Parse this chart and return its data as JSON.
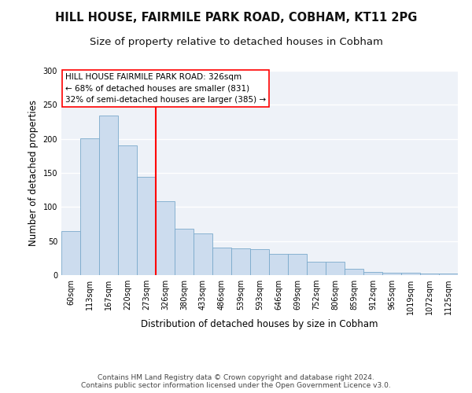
{
  "title1": "HILL HOUSE, FAIRMILE PARK ROAD, COBHAM, KT11 2PG",
  "title2": "Size of property relative to detached houses in Cobham",
  "xlabel": "Distribution of detached houses by size in Cobham",
  "ylabel": "Number of detached properties",
  "categories": [
    "60sqm",
    "113sqm",
    "167sqm",
    "220sqm",
    "273sqm",
    "326sqm",
    "380sqm",
    "433sqm",
    "486sqm",
    "539sqm",
    "593sqm",
    "646sqm",
    "699sqm",
    "752sqm",
    "806sqm",
    "859sqm",
    "912sqm",
    "965sqm",
    "1019sqm",
    "1072sqm",
    "1125sqm"
  ],
  "values": [
    65,
    201,
    234,
    190,
    144,
    108,
    68,
    61,
    40,
    39,
    38,
    31,
    31,
    20,
    20,
    9,
    5,
    4,
    4,
    2,
    2
  ],
  "bar_color": "#ccdcee",
  "bar_edge_color": "#7aaacb",
  "vline_color": "red",
  "vline_index": 5,
  "annotation_text": "HILL HOUSE FAIRMILE PARK ROAD: 326sqm\n← 68% of detached houses are smaller (831)\n32% of semi-detached houses are larger (385) →",
  "annotation_box_color": "white",
  "annotation_box_edge": "red",
  "ylim": [
    0,
    300
  ],
  "yticks": [
    0,
    50,
    100,
    150,
    200,
    250,
    300
  ],
  "footer_text": "Contains HM Land Registry data © Crown copyright and database right 2024.\nContains public sector information licensed under the Open Government Licence v3.0.",
  "background_color": "#eef2f8",
  "grid_color": "#ffffff",
  "title1_fontsize": 10.5,
  "title2_fontsize": 9.5,
  "xlabel_fontsize": 8.5,
  "ylabel_fontsize": 8.5,
  "tick_fontsize": 7,
  "annotation_fontsize": 7.5,
  "footer_fontsize": 6.5
}
